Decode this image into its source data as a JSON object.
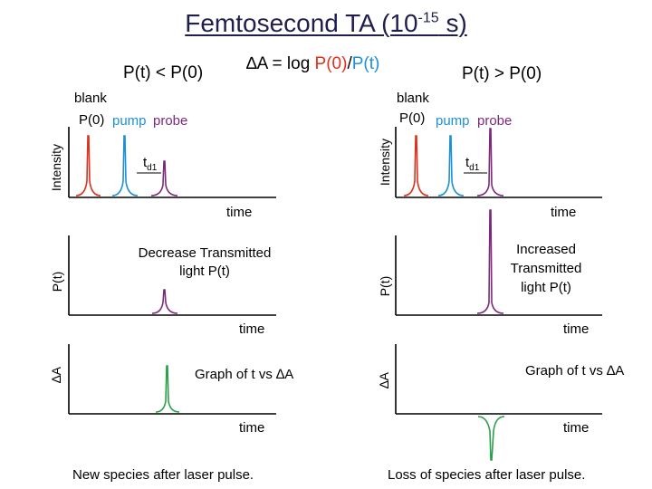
{
  "title": {
    "main": "Femtosecond TA (10",
    "sup": "-15",
    "end": " s)"
  },
  "formula": {
    "prefix": "∆A = log ",
    "p0": "P(0)",
    "slash": "/",
    "pt": "P(t)"
  },
  "left": {
    "condition": "P(t) < P(0)",
    "blank": "blank",
    "p0": "P(0)",
    "pump": "pump",
    "probe": "probe",
    "td_main": "t",
    "td_sub": "d1",
    "intensity_axis": "Intensity",
    "time1": "time",
    "pt_axis": "P(t)",
    "pt_desc": "Decrease Transmitted light P(t)",
    "time2": "time",
    "da_axis": "∆A",
    "da_desc": "Graph of t vs ∆A",
    "time3": "time",
    "caption": "New species after laser pulse."
  },
  "right": {
    "condition": "P(t) > P(0)",
    "blank": "blank",
    "p0": "P(0)",
    "pump": "pump",
    "probe": "probe",
    "td_main": "t",
    "td_sub": "d1",
    "intensity_axis": "Intensity",
    "time1": "time",
    "pt_axis": "P(t)",
    "pt_desc": "Increased Transmitted light P(t)",
    "time2": "time",
    "da_axis": "∆A",
    "da_desc": "Graph of t vs ∆A",
    "time3": "time",
    "caption": "Loss of species after laser pulse."
  },
  "colors": {
    "title": "#1f1f4f",
    "blank": "#e0301e",
    "pump": "#1f8fd6",
    "probe": "#7b2a7b",
    "delta": "#2aa04a",
    "axis": "#000000"
  }
}
